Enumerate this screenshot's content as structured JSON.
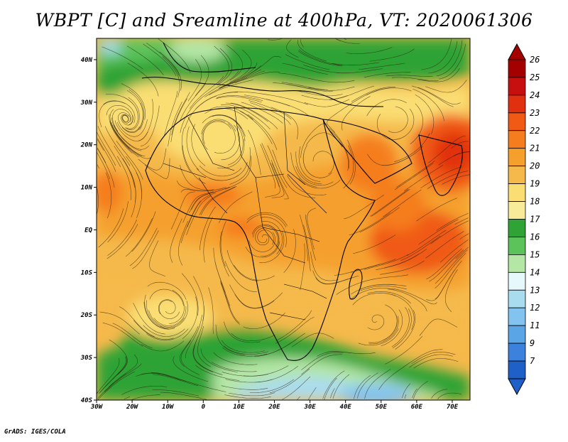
{
  "title": "WBPT [C] and Sreamline at 400hPa, VT: 2020061306",
  "footer": "GrADS: IGES/COLA",
  "map": {
    "lon_labels": [
      "30W",
      "20W",
      "10W",
      "0",
      "10E",
      "20E",
      "30E",
      "40E",
      "50E",
      "60E",
      "70E"
    ],
    "lat_labels": [
      "40N",
      "30N",
      "20N",
      "10N",
      "EQ",
      "10S",
      "20S",
      "30S",
      "40S"
    ],
    "lon_range": [
      -30,
      75
    ],
    "lat_range": [
      -40,
      45
    ]
  },
  "colorbar": {
    "levels": [
      "26",
      "25",
      "24",
      "23",
      "22",
      "21",
      "20",
      "19",
      "18",
      "17",
      "16",
      "15",
      "14",
      "13",
      "12",
      "11",
      "9",
      "7"
    ],
    "colors": [
      "#a50000",
      "#c80f0f",
      "#e1300f",
      "#f05a14",
      "#f57d1e",
      "#f5a02d",
      "#f5b94b",
      "#fade73",
      "#f7eb9a",
      "#2fa335",
      "#5cc25a",
      "#b4e6a5",
      "#e6f8fa",
      "#aadcf0",
      "#82c3f0",
      "#5aa5e6",
      "#3c82dc",
      "#1e5fc8"
    ],
    "arrow_top_color": "#a50000",
    "arrow_bottom_color": "#1e5fc8"
  }
}
